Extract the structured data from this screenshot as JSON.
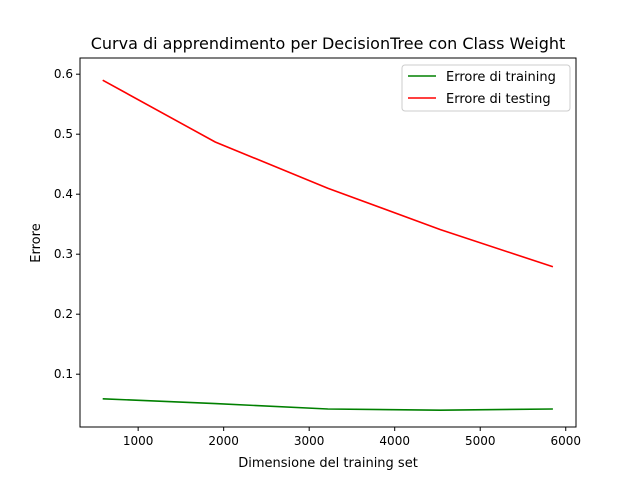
{
  "chart_data": {
    "type": "line",
    "title": "Curva di apprendimento per DecisionTree con Class Weight",
    "xlabel": "Dimensione del training set",
    "ylabel": "Errore",
    "xlim": [
      320,
      6120
    ],
    "ylim": [
      0.012,
      0.627
    ],
    "xticks": [
      1000,
      2000,
      3000,
      4000,
      5000,
      6000
    ],
    "yticks": [
      0.1,
      0.2,
      0.3,
      0.4,
      0.5,
      0.6
    ],
    "xtick_labels": [
      "1000",
      "2000",
      "3000",
      "4000",
      "5000",
      "6000"
    ],
    "ytick_labels": [
      "0.1",
      "0.2",
      "0.3",
      "0.4",
      "0.5",
      "0.6"
    ],
    "grid": false,
    "legend_position": "top-right",
    "x": [
      585,
      1901,
      3218,
      4534,
      5850
    ],
    "series": [
      {
        "name": "Errore di training",
        "color": "#008000",
        "values": [
          0.059,
          0.051,
          0.042,
          0.04,
          0.042
        ]
      },
      {
        "name": "Errore di testing",
        "color": "#ff0000",
        "values": [
          0.59,
          0.487,
          0.41,
          0.341,
          0.279
        ]
      }
    ]
  }
}
